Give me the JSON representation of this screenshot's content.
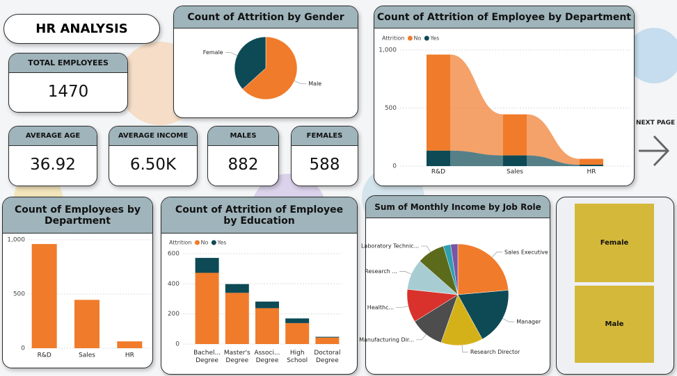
{
  "header": {
    "title": "HR ANALYSIS"
  },
  "kpis": [
    {
      "label": "TOTAL EMPLOYEES",
      "value": 1470
    },
    {
      "label": "AVERAGE AGE",
      "value": 36.92
    },
    {
      "label": "AVERAGE INCOME",
      "value": "6.50K"
    },
    {
      "label": "MALES",
      "value": 882
    },
    {
      "label": "FEMALES",
      "value": 588
    }
  ],
  "nav": {
    "next": "NEXT PAGE"
  },
  "slicer": {
    "items": [
      "Female",
      "Male"
    ]
  },
  "chart_data": [
    {
      "type": "pie",
      "title": "Count of Attrition by Gender",
      "categories": [
        "Male",
        "Female"
      ],
      "values": [
        150,
        87
      ],
      "colors": [
        "#f07b2a",
        "#0d4a55"
      ]
    },
    {
      "type": "ribbon",
      "title": "Count of Attrition of Employee by Department",
      "legend_title": "Attrition",
      "categories": [
        "R&D",
        "Sales",
        "HR"
      ],
      "series": [
        {
          "name": "No",
          "color": "#f07b2a",
          "values": [
            828,
            354,
            51
          ]
        },
        {
          "name": "Yes",
          "color": "#0d4a55",
          "values": [
            133,
            92,
            12
          ]
        }
      ],
      "ylim": [
        0,
        1000
      ],
      "yticks": [
        0,
        500,
        {
          "value": 1000,
          "label": "1,000"
        }
      ],
      "grid": true
    },
    {
      "type": "bar",
      "title": "Count of Employees by Department",
      "categories": [
        "R&D",
        "Sales",
        "HR"
      ],
      "values": [
        961,
        446,
        63
      ],
      "color": "#f07b2a",
      "ylim": [
        0,
        1000
      ],
      "yticks": [
        0,
        500,
        {
          "value": 1000,
          "label": "1,000"
        }
      ],
      "grid": true
    },
    {
      "type": "stacked_bar",
      "title": "Count of Attrition of Employee by Education",
      "legend_title": "Attrition",
      "categories": [
        "Bachel... Degree",
        "Master's Degree",
        "Associ... Degree",
        "High School",
        "Doctoral Degree"
      ],
      "series": [
        {
          "name": "No",
          "color": "#f07b2a",
          "values": [
            473,
            340,
            238,
            139,
            43
          ]
        },
        {
          "name": "Yes",
          "color": "#0d4a55",
          "values": [
            99,
            58,
            44,
            31,
            5
          ]
        }
      ],
      "ylim": [
        0,
        600
      ],
      "yticks": [
        0,
        200,
        400,
        600
      ],
      "grid": true
    },
    {
      "type": "pie",
      "title": "Sum of Monthly Income by Job Role",
      "categories": [
        "Sales Executive",
        "Manager",
        "Research Director",
        "Manufacturing Dir...",
        "Healthc...",
        "Research ...",
        "Laboratory Technic...",
        null,
        null
      ],
      "values": [
        2245,
        1751,
        1273,
        1024,
        1007,
        934,
        845,
        220,
        218
      ],
      "colors": [
        "#f07b2a",
        "#0d4a55",
        "#d4b118",
        "#4d4d4d",
        "#d9312b",
        "#a7cdd3",
        "#5b6b1b",
        "#2f9fb1",
        "#7b55a4"
      ]
    }
  ]
}
